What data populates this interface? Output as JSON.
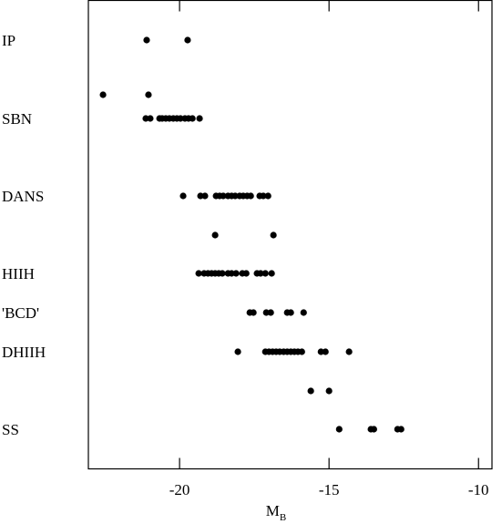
{
  "chart_data": {
    "type": "scatter",
    "x_label": "M",
    "x_label_sub": "B",
    "xlim": [
      -23.05,
      -9.55
    ],
    "xticks": [
      -20,
      -15,
      -10
    ],
    "rows": [
      {
        "label": "IP",
        "x": [
          -21.1,
          -19.73
        ]
      },
      {
        "label": null,
        "x": [
          -22.56,
          -21.04
        ]
      },
      {
        "label": "SBN",
        "x": [
          -21.13,
          -20.98,
          -20.67,
          -20.58,
          -20.46,
          -20.34,
          -20.21,
          -20.09,
          -19.97,
          -19.82,
          -19.7,
          -19.57,
          -19.33
        ]
      },
      {
        "label": "DANS",
        "x": [
          -19.88,
          -19.3,
          -19.15,
          -18.78,
          -18.66,
          -18.54,
          -18.38,
          -18.26,
          -18.14,
          -17.99,
          -17.87,
          -17.74,
          -17.62,
          -17.32,
          -17.2,
          -17.04
        ]
      },
      {
        "label": null,
        "x": [
          -18.81,
          -16.86
        ]
      },
      {
        "label": "HIIH",
        "x": [
          -19.36,
          -19.18,
          -19.05,
          -18.93,
          -18.81,
          -18.69,
          -18.57,
          -18.38,
          -18.26,
          -18.11,
          -17.9,
          -17.77,
          -17.41,
          -17.29,
          -17.13,
          -16.92
        ]
      },
      {
        "label": "'BCD'",
        "x": [
          -17.65,
          -17.53,
          -17.1,
          -16.95,
          -16.4,
          -16.28,
          -15.85
        ]
      },
      {
        "label": "DHIIH",
        "x": [
          -18.05,
          -17.13,
          -17.01,
          -16.89,
          -16.77,
          -16.65,
          -16.52,
          -16.4,
          -16.28,
          -16.16,
          -16.04,
          -15.91,
          -15.27,
          -15.12,
          -14.33
        ]
      },
      {
        "label": null,
        "x": [
          -15.61,
          -15.0
        ]
      },
      {
        "label": "SS",
        "x": [
          -14.66,
          -13.6,
          -13.5,
          -12.71,
          -12.59
        ]
      }
    ]
  }
}
